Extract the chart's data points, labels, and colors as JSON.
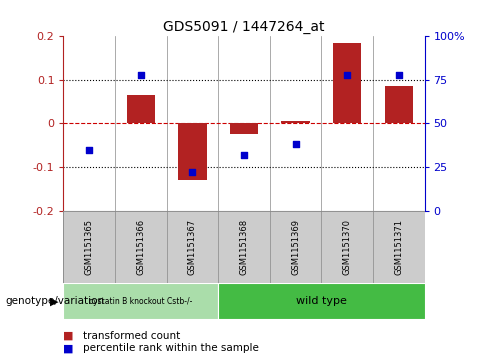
{
  "title": "GDS5091 / 1447264_at",
  "samples": [
    "GSM1151365",
    "GSM1151366",
    "GSM1151367",
    "GSM1151368",
    "GSM1151369",
    "GSM1151370",
    "GSM1151371"
  ],
  "transformed_count": [
    0.0,
    0.065,
    -0.13,
    -0.025,
    0.005,
    0.185,
    0.085
  ],
  "percentile_rank": [
    35,
    78,
    22,
    32,
    38,
    78,
    78
  ],
  "ylim_left": [
    -0.2,
    0.2
  ],
  "ylim_right": [
    0,
    100
  ],
  "yticks_left": [
    -0.2,
    -0.1,
    0.0,
    0.1,
    0.2
  ],
  "yticks_right": [
    0,
    25,
    50,
    75,
    100
  ],
  "ytick_labels_left": [
    "-0.2",
    "-0.1",
    "0",
    "0.1",
    "0.2"
  ],
  "ytick_labels_right": [
    "0",
    "25",
    "50",
    "75",
    "100%"
  ],
  "bar_color": "#b22222",
  "dot_color": "#0000cc",
  "zero_line_color": "#cc0000",
  "dotted_line_color": "#000000",
  "group1_label": "cystatin B knockout Cstb-/-",
  "group2_label": "wild type",
  "group1_indices": [
    0,
    1,
    2
  ],
  "group2_indices": [
    3,
    4,
    5,
    6
  ],
  "group1_color": "#aaddaa",
  "group2_color": "#44bb44",
  "annotation_label": "genotype/variation",
  "legend_bar_label": "transformed count",
  "legend_dot_label": "percentile rank within the sample",
  "bar_width": 0.55,
  "sample_box_color": "#cccccc",
  "separator_color": "#888888"
}
